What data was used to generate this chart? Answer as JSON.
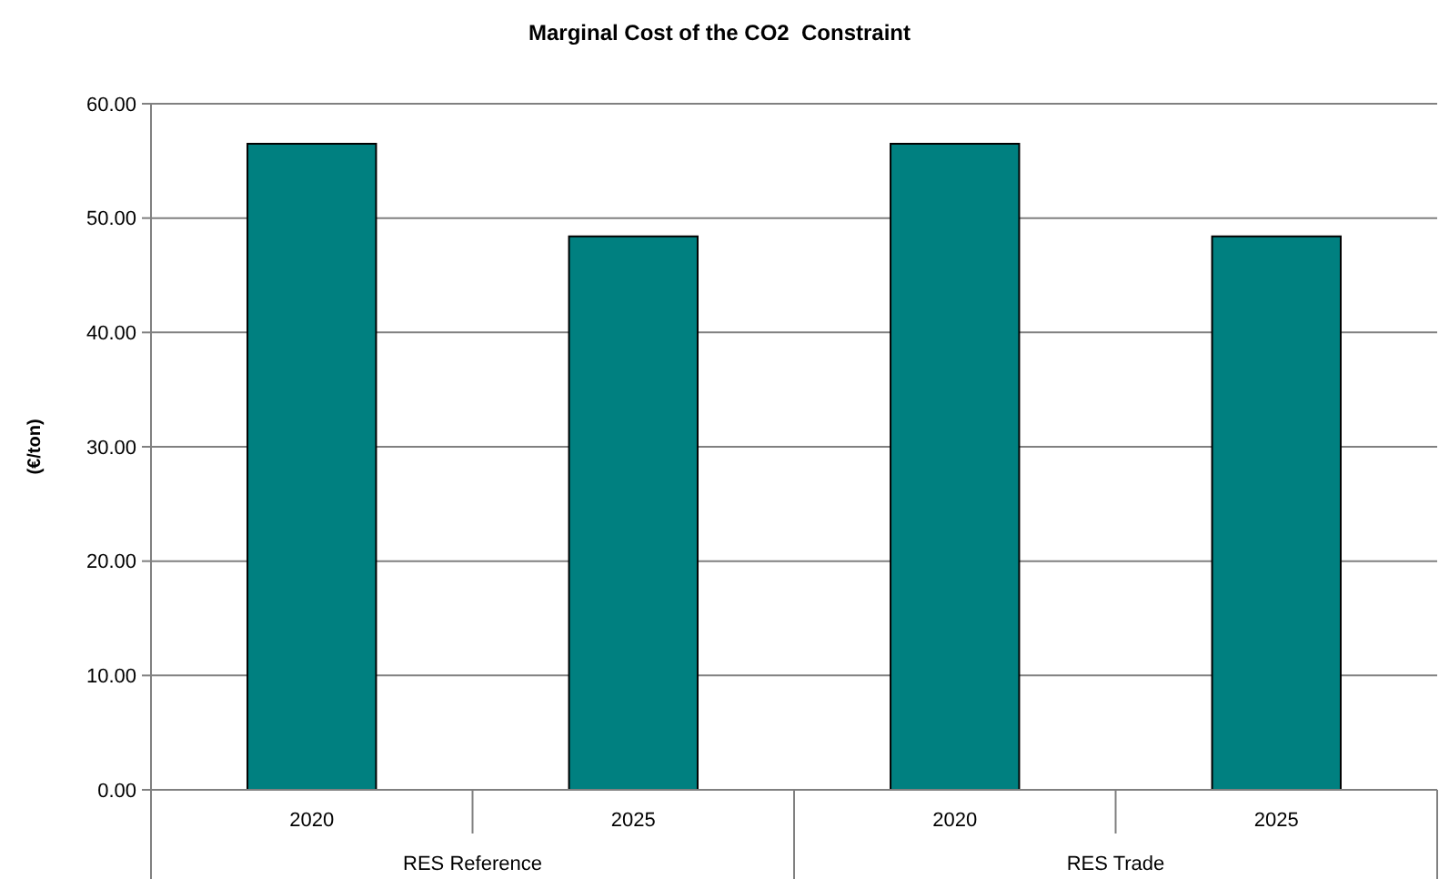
{
  "chart_data": {
    "type": "bar",
    "title": "Marginal Cost of the CO2  Constraint",
    "ylabel": "(€/ton)",
    "categories": [
      "2020",
      "2025",
      "2020",
      "2025"
    ],
    "values": [
      56.5,
      48.4,
      56.5,
      48.4
    ],
    "color": "#008080",
    "ylim": [
      0,
      60
    ],
    "yticks": [
      {
        "value": 0,
        "label": "0.00"
      },
      {
        "value": 10,
        "label": "10.00"
      },
      {
        "value": 20,
        "label": "20.00"
      },
      {
        "value": 30,
        "label": "30.00"
      },
      {
        "value": 40,
        "label": "40.00"
      },
      {
        "value": 50,
        "label": "50.00"
      },
      {
        "value": 60,
        "label": "60.00"
      }
    ],
    "grid": "y",
    "annotations": [
      "RES Reference",
      "RES Trade"
    ]
  }
}
